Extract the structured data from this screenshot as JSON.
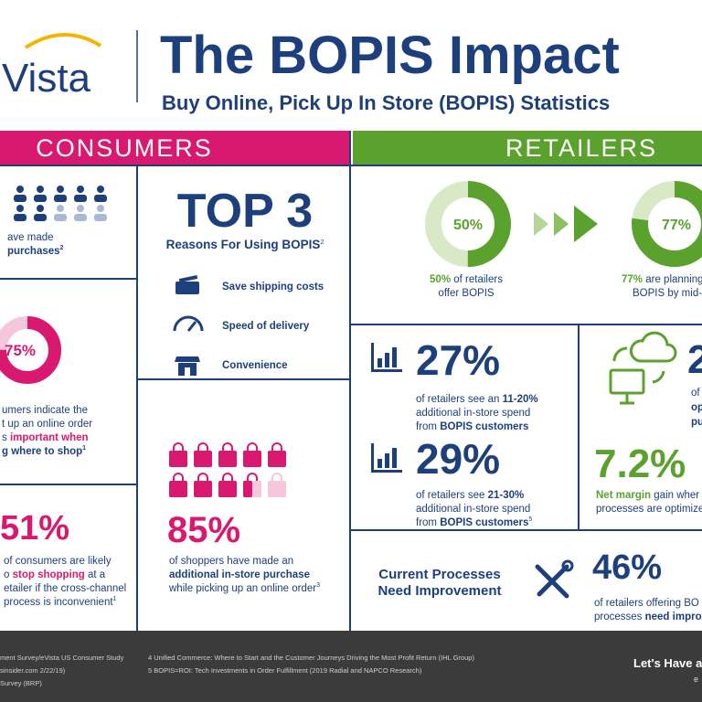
{
  "header": {
    "logo": "Vista",
    "title": "The BOPIS Impact",
    "subtitle": "Buy Online, Pick Up In Store (BOPIS) Statistics"
  },
  "consumers": {
    "heading": "CONSUMERS",
    "purchases": {
      "line1": "ave made",
      "line2": "purchases",
      "note": "2"
    },
    "importance": {
      "stat": {
        "value": 75,
        "label": "75%"
      },
      "line1": "umers indicate the",
      "line2": "t up an online order",
      "line3a": "s ",
      "line3b": "important when",
      "line4": "g where to shop",
      "note": "1"
    },
    "inconvenient": {
      "stat": "51%",
      "line1": "of consumers are likely",
      "line2a": "o ",
      "line2b": "stop shopping",
      "line2c": " at a",
      "line3": "etailer if the cross-channel",
      "line4": "process is inconvenient",
      "note": "1"
    },
    "top3": {
      "title": "TOP 3",
      "subtitle": "Reasons For Using BOPIS",
      "note": "2",
      "reasons": [
        "Save shipping costs",
        "Speed of delivery",
        "Convenience"
      ]
    },
    "additional": {
      "stat": {
        "value": 85,
        "label": "85%"
      },
      "line1": "of shoppers have made an",
      "line2": "additional in-store purchase",
      "line3": "while picking up an online order",
      "note": "3"
    }
  },
  "retailers": {
    "heading": "RETAILERS",
    "offer": {
      "stat": {
        "value": 50,
        "label": "50%"
      },
      "line1a": "50%",
      "line1b": " of retailers",
      "line2": "offer BOPIS"
    },
    "planning": {
      "stat": {
        "value": 77,
        "label": "77%"
      },
      "line1a": "77%",
      "line1b": " are planning",
      "line2": "BOPIS by mid-"
    },
    "spend1": {
      "stat": "27%",
      "line1a": "of retailers see an ",
      "line1b": "11-20%",
      "line2": "additional in-store spend",
      "line3a": "from ",
      "line3b": "BOPIS customers"
    },
    "spend2": {
      "stat": "29%",
      "line1a": "of retailers see ",
      "line1b": "21-30%",
      "line2": "additional in-store spend",
      "line3a": "from ",
      "line3b": "BOPIS customers",
      "note": "5"
    },
    "optimized": {
      "stat": "2",
      "line1": "of",
      "line2": "op",
      "line3": "pu"
    },
    "margin": {
      "stat": "7.2%",
      "line1a": "Net margin",
      "line1b": " gain wher",
      "line2": "processes are optimize"
    },
    "improvement": {
      "label1": "Current Processes",
      "label2": "Need Improvement",
      "stat": "46%",
      "line1": "of retailers offering BO",
      "line2a": "processes ",
      "line2b": "need improv"
    }
  },
  "footer": {
    "sources": [
      "ment Survey/eVista US Consumer Study",
      "sinsider.com 2/22/19)",
      "Survey (BRP)",
      "4 Unified Commerce: Where to Start and the Customer Journeys Driving the Most Profit Return (IHL Group)",
      "5 BOPIS=ROI: Tech Investments in Order Fulfillment (2019 Radial and NAPCO Research)"
    ],
    "cta": "Let's Have a",
    "cta2": "e"
  }
}
